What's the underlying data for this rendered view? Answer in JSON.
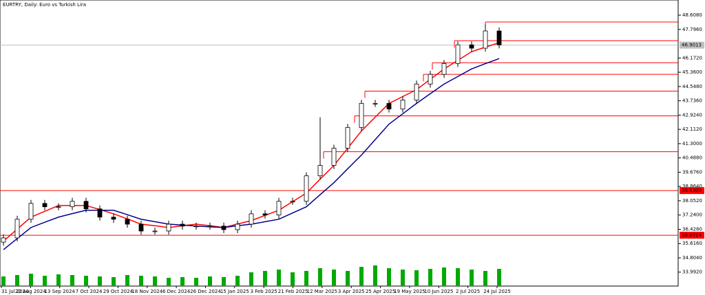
{
  "chart_data": {
    "type": "candlestick",
    "title": "EURTRY, Daily:  Euro vs Turkish Lira",
    "x_labels": [
      "31 Jul 2024",
      "22 Aug 2024",
      "13 Sep 2024",
      "7 Oct 2024",
      "29 Oct 2024",
      "18 Nov 2024",
      "6 Dec 2024",
      "26 Dec 2024",
      "15 Jan 2025",
      "3 Feb 2025",
      "21 Feb 2025",
      "12 Mar 2025",
      "3 Apr 2025",
      "25 Apr 2025",
      "19 May 2025",
      "10 Jun 2025",
      "2 Jul 2025",
      "24 Jul 2025"
    ],
    "open": [
      35.7,
      35.94,
      37.0,
      37.9,
      37.71,
      37.71,
      38.02,
      37.59,
      37.12,
      37.0,
      36.72,
      36.33,
      36.33,
      36.72,
      36.61,
      36.61,
      36.61,
      36.41,
      36.72,
      37.31,
      37.24,
      38.02,
      38.02,
      39.47,
      40.06,
      41.04,
      42.22,
      43.59,
      43.59,
      43.27,
      43.78,
      44.69,
      45.24,
      45.86,
      46.92,
      46.73,
      47.71
    ],
    "high": [
      36.14,
      37.2,
      38.1,
      38.1,
      37.91,
      38.22,
      38.22,
      37.79,
      37.32,
      37.2,
      36.92,
      36.53,
      36.92,
      36.92,
      36.81,
      36.81,
      36.81,
      36.92,
      37.51,
      37.51,
      38.22,
      38.22,
      39.67,
      42.8,
      41.24,
      42.42,
      43.79,
      43.79,
      43.79,
      43.98,
      44.89,
      45.44,
      46.06,
      47.12,
      47.12,
      48.1,
      47.91
    ],
    "low": [
      35.5,
      35.74,
      36.8,
      37.51,
      37.51,
      37.51,
      37.39,
      36.92,
      36.8,
      36.52,
      36.13,
      36.13,
      36.13,
      36.41,
      36.41,
      36.41,
      36.21,
      36.21,
      36.52,
      37.04,
      37.04,
      37.82,
      37.82,
      39.27,
      39.86,
      40.84,
      42.02,
      43.39,
      43.07,
      43.07,
      43.58,
      44.49,
      45.04,
      45.66,
      46.53,
      46.53,
      46.72
    ],
    "close": [
      35.94,
      37.0,
      37.9,
      37.71,
      37.71,
      38.02,
      37.59,
      37.12,
      37.0,
      36.72,
      36.33,
      36.33,
      36.72,
      36.61,
      36.61,
      36.61,
      36.41,
      36.72,
      37.31,
      37.24,
      38.02,
      38.02,
      39.47,
      40.06,
      41.04,
      42.22,
      43.59,
      43.59,
      43.27,
      43.78,
      44.69,
      45.24,
      45.86,
      46.92,
      46.73,
      47.71,
      46.92
    ],
    "series": [
      {
        "color": "#ff0000",
        "values": [
          35.75,
          36.44,
          37.12,
          37.45,
          37.78,
          37.78,
          37.78,
          37.55,
          37.31,
          37.02,
          36.72,
          36.63,
          36.53,
          36.63,
          36.72,
          36.63,
          36.53,
          36.73,
          36.92,
          37.22,
          37.51,
          38.0,
          38.49,
          39.28,
          40.06,
          41.04,
          42.02,
          42.81,
          43.59,
          43.98,
          44.37,
          44.96,
          45.55,
          46.04,
          46.53,
          46.79,
          47.04
        ]
      },
      {
        "color": "#00008b",
        "values": [
          35.27,
          35.9,
          36.53,
          36.83,
          37.12,
          37.32,
          37.51,
          37.51,
          37.51,
          37.26,
          37.0,
          36.86,
          36.72,
          36.67,
          36.61,
          36.57,
          36.53,
          36.63,
          36.72,
          36.86,
          37.0,
          37.36,
          37.71,
          38.4,
          39.08,
          39.87,
          40.65,
          41.53,
          42.41,
          43.0,
          43.59,
          44.14,
          44.69,
          45.12,
          45.55,
          45.85,
          46.14
        ]
      }
    ],
    "volume": [
      14,
      16,
      18,
      15,
      17,
      16,
      15,
      14,
      13,
      16,
      15,
      14,
      12,
      13,
      12,
      14,
      13,
      15,
      20,
      22,
      24,
      20,
      22,
      26,
      24,
      22,
      28,
      30,
      26,
      24,
      23,
      25,
      27,
      26,
      24,
      22,
      25
    ],
    "volume_color": "#00aa00",
    "levels": [
      48.22,
      47.16,
      45.9,
      45.24,
      44.29,
      42.88,
      40.84,
      38.63,
      36.0914
    ],
    "level_color": "#ff0000",
    "level_labels": [
      {
        "value": 38.63,
        "label": "38.6300"
      },
      {
        "value": 36.0914,
        "label": "36.0914"
      }
    ],
    "price": {
      "value": 46.9013,
      "label": "46.9013"
    },
    "ylim": [
      33.2,
      49.47
    ],
    "yticks": [
      {
        "value": 48.608,
        "label": "48.6080"
      },
      {
        "value": 47.796,
        "label": "47.7960"
      },
      {
        "value": 46.172,
        "label": "46.1720"
      },
      {
        "value": 45.36,
        "label": "45.3600"
      },
      {
        "value": 44.548,
        "label": "44.5480"
      },
      {
        "value": 43.736,
        "label": "43.7360"
      },
      {
        "value": 42.924,
        "label": "42.9240"
      },
      {
        "value": 42.112,
        "label": "42.1120"
      },
      {
        "value": 41.3,
        "label": "41.3000"
      },
      {
        "value": 40.488,
        "label": "40.4880"
      },
      {
        "value": 39.676,
        "label": "39.6760"
      },
      {
        "value": 38.864,
        "label": "38.8640"
      },
      {
        "value": 38.052,
        "label": "38.0520"
      },
      {
        "value": 37.24,
        "label": "37.2400"
      },
      {
        "value": 36.428,
        "label": "36.4280"
      },
      {
        "value": 35.616,
        "label": "35.6160"
      },
      {
        "value": 34.804,
        "label": "34.8040"
      },
      {
        "value": 33.992,
        "label": "33.9920"
      }
    ]
  }
}
